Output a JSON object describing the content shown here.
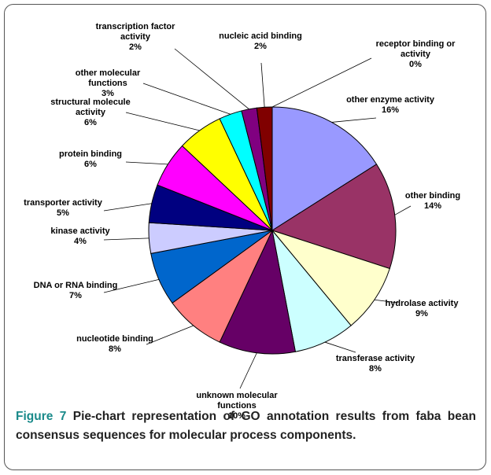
{
  "chart_data": {
    "type": "pie",
    "categories": [
      "other enzyme activity",
      "other binding",
      "hydrolase activity",
      "transferase activity",
      "unknown molecular functions",
      "nucleotide binding",
      "DNA or RNA binding",
      "kinase activity",
      "transporter activity",
      "protein binding",
      "structural molecule activity",
      "other molecular functions",
      "transcription factor activity",
      "nucleic acid binding",
      "receptor binding or activity"
    ],
    "values": [
      16,
      14,
      9,
      8,
      10,
      8,
      7,
      4,
      5,
      6,
      6,
      3,
      2,
      2,
      0
    ],
    "value_labels": [
      "16%",
      "14%",
      "9%",
      "8%",
      "10%",
      "8%",
      "7%",
      "4%",
      "5%",
      "6%",
      "6%",
      "3%",
      "2%",
      "2%",
      "0%"
    ],
    "colors": [
      "#9999ff",
      "#993366",
      "#ffffcc",
      "#ccffff",
      "#660066",
      "#ff8080",
      "#0066cc",
      "#ccccff",
      "#000080",
      "#ff00ff",
      "#ffff00",
      "#00ffff",
      "#800080",
      "#800000",
      "#008080"
    ]
  },
  "caption": {
    "label": "Figure 7",
    "text": "Pie-chart representation of GO annotation results from faba bean consensus sequences for molecular process components."
  }
}
